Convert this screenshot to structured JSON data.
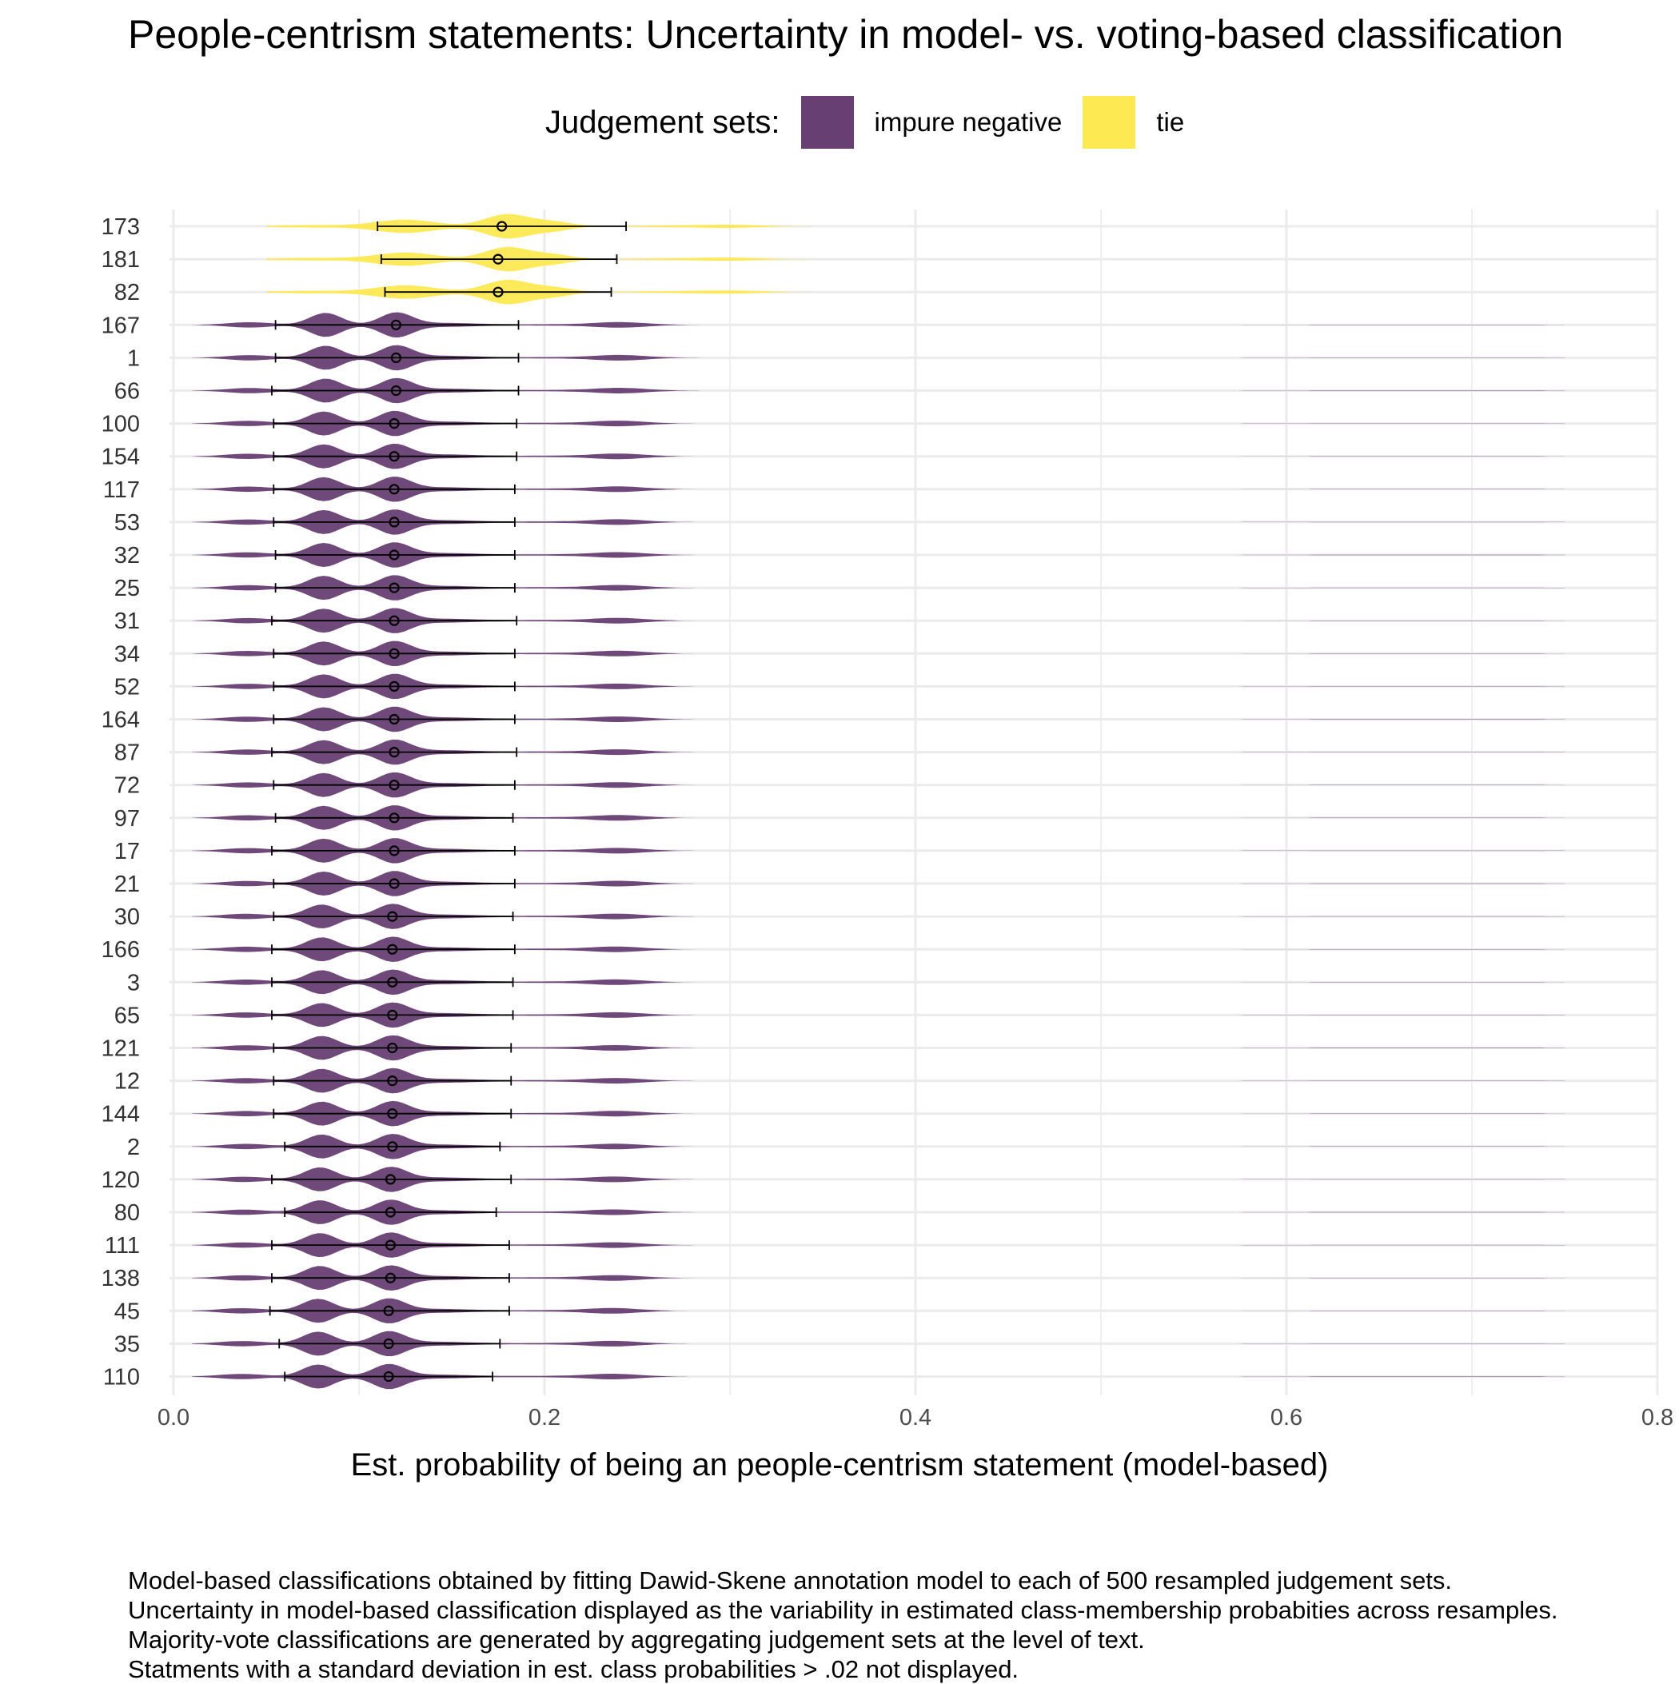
{
  "title": "People-centrism statements: Uncertainty in model- vs. voting-based classification",
  "legend": {
    "title": "Judgement sets:",
    "items": [
      {
        "label": "impure negative",
        "color": "#673F72"
      },
      {
        "label": "tie",
        "color": "#FDE952"
      }
    ]
  },
  "xlabel": "Est. probability of being an people-centrism statement (model-based)",
  "caption": [
    "Model-based classifications obtained by fitting Dawid-Skene annotation model to each of 500 resampled judgement sets.",
    "Uncertainty in model-based classification displayed as the variability in estimated class-membership probabities across resamples.",
    "Majority-vote classifications are generated by aggregating judgement sets at the level of text.",
    "Statments with a standard deviation in est. class probabilities > .02 not displayed."
  ],
  "chart_data": {
    "type": "violin",
    "title": "People-centrism statements: Uncertainty in model- vs. voting-based classification",
    "xlabel": "Est. probability of being an people-centrism statement (model-based)",
    "ylabel": "",
    "xlim": [
      0,
      0.8
    ],
    "xticks": [
      "0.0",
      "0.2",
      "0.4",
      "0.6",
      "0.8"
    ],
    "grid": true,
    "legend_position": "top",
    "rows": [
      {
        "id": "173",
        "group": "tie",
        "mean": 0.177,
        "lo": 0.11,
        "hi": 0.244
      },
      {
        "id": "181",
        "group": "tie",
        "mean": 0.175,
        "lo": 0.112,
        "hi": 0.239
      },
      {
        "id": "82",
        "group": "tie",
        "mean": 0.175,
        "lo": 0.114,
        "hi": 0.236
      },
      {
        "id": "167",
        "group": "impure negative",
        "mean": 0.12,
        "lo": 0.055,
        "hi": 0.186
      },
      {
        "id": "1",
        "group": "impure negative",
        "mean": 0.12,
        "lo": 0.055,
        "hi": 0.186
      },
      {
        "id": "66",
        "group": "impure negative",
        "mean": 0.12,
        "lo": 0.053,
        "hi": 0.186
      },
      {
        "id": "100",
        "group": "impure negative",
        "mean": 0.119,
        "lo": 0.054,
        "hi": 0.185
      },
      {
        "id": "154",
        "group": "impure negative",
        "mean": 0.119,
        "lo": 0.054,
        "hi": 0.185
      },
      {
        "id": "117",
        "group": "impure negative",
        "mean": 0.119,
        "lo": 0.054,
        "hi": 0.184
      },
      {
        "id": "53",
        "group": "impure negative",
        "mean": 0.119,
        "lo": 0.054,
        "hi": 0.184
      },
      {
        "id": "32",
        "group": "impure negative",
        "mean": 0.119,
        "lo": 0.055,
        "hi": 0.184
      },
      {
        "id": "25",
        "group": "impure negative",
        "mean": 0.119,
        "lo": 0.055,
        "hi": 0.184
      },
      {
        "id": "31",
        "group": "impure negative",
        "mean": 0.119,
        "lo": 0.053,
        "hi": 0.185
      },
      {
        "id": "34",
        "group": "impure negative",
        "mean": 0.119,
        "lo": 0.054,
        "hi": 0.184
      },
      {
        "id": "52",
        "group": "impure negative",
        "mean": 0.119,
        "lo": 0.054,
        "hi": 0.184
      },
      {
        "id": "164",
        "group": "impure negative",
        "mean": 0.119,
        "lo": 0.054,
        "hi": 0.184
      },
      {
        "id": "87",
        "group": "impure negative",
        "mean": 0.119,
        "lo": 0.053,
        "hi": 0.185
      },
      {
        "id": "72",
        "group": "impure negative",
        "mean": 0.119,
        "lo": 0.054,
        "hi": 0.184
      },
      {
        "id": "97",
        "group": "impure negative",
        "mean": 0.119,
        "lo": 0.055,
        "hi": 0.183
      },
      {
        "id": "17",
        "group": "impure negative",
        "mean": 0.119,
        "lo": 0.053,
        "hi": 0.184
      },
      {
        "id": "21",
        "group": "impure negative",
        "mean": 0.119,
        "lo": 0.054,
        "hi": 0.184
      },
      {
        "id": "30",
        "group": "impure negative",
        "mean": 0.118,
        "lo": 0.054,
        "hi": 0.183
      },
      {
        "id": "166",
        "group": "impure negative",
        "mean": 0.118,
        "lo": 0.053,
        "hi": 0.184
      },
      {
        "id": "3",
        "group": "impure negative",
        "mean": 0.118,
        "lo": 0.053,
        "hi": 0.183
      },
      {
        "id": "65",
        "group": "impure negative",
        "mean": 0.118,
        "lo": 0.053,
        "hi": 0.183
      },
      {
        "id": "121",
        "group": "impure negative",
        "mean": 0.118,
        "lo": 0.054,
        "hi": 0.182
      },
      {
        "id": "12",
        "group": "impure negative",
        "mean": 0.118,
        "lo": 0.054,
        "hi": 0.182
      },
      {
        "id": "144",
        "group": "impure negative",
        "mean": 0.118,
        "lo": 0.054,
        "hi": 0.182
      },
      {
        "id": "2",
        "group": "impure negative",
        "mean": 0.118,
        "lo": 0.06,
        "hi": 0.176
      },
      {
        "id": "120",
        "group": "impure negative",
        "mean": 0.117,
        "lo": 0.053,
        "hi": 0.182
      },
      {
        "id": "80",
        "group": "impure negative",
        "mean": 0.117,
        "lo": 0.06,
        "hi": 0.174
      },
      {
        "id": "111",
        "group": "impure negative",
        "mean": 0.117,
        "lo": 0.053,
        "hi": 0.181
      },
      {
        "id": "138",
        "group": "impure negative",
        "mean": 0.117,
        "lo": 0.053,
        "hi": 0.181
      },
      {
        "id": "45",
        "group": "impure negative",
        "mean": 0.116,
        "lo": 0.052,
        "hi": 0.181
      },
      {
        "id": "35",
        "group": "impure negative",
        "mean": 0.116,
        "lo": 0.057,
        "hi": 0.176
      },
      {
        "id": "110",
        "group": "impure negative",
        "mean": 0.116,
        "lo": 0.06,
        "hi": 0.172
      }
    ]
  }
}
